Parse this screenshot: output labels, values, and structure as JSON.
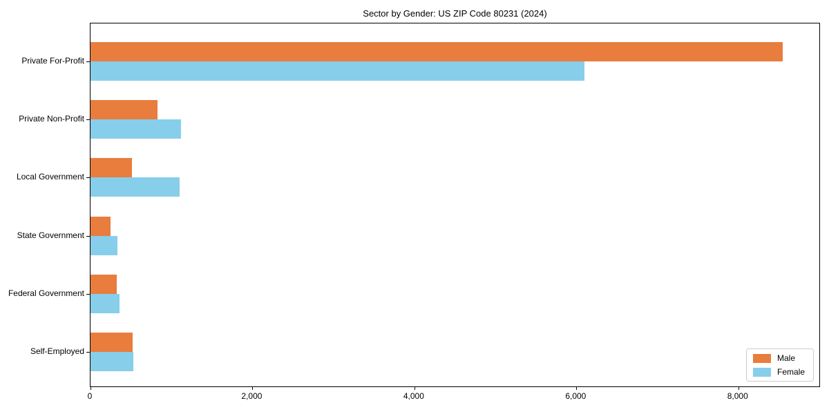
{
  "title": "Sector by Gender: US ZIP Code 80231 (2024)",
  "chart_data": {
    "type": "bar",
    "orientation": "horizontal",
    "title": "Sector by Gender: US ZIP Code 80231 (2024)",
    "xlabel": "",
    "ylabel": "",
    "categories": [
      "Private For-Profit",
      "Private Non-Profit",
      "Local Government",
      "State Government",
      "Federal Government",
      "Self-Employed"
    ],
    "series": [
      {
        "name": "Male",
        "color": "#e87d3e",
        "values": [
          8550,
          825,
          510,
          250,
          325,
          520
        ]
      },
      {
        "name": "Female",
        "color": "#87ceeb",
        "values": [
          6100,
          1115,
          1100,
          330,
          355,
          530
        ]
      }
    ],
    "xlim": [
      0,
      9000
    ],
    "x_ticks": [
      {
        "value": 0,
        "label": "0"
      },
      {
        "value": 2000,
        "label": "2,000"
      },
      {
        "value": 4000,
        "label": "4,000"
      },
      {
        "value": 6000,
        "label": "6,000"
      },
      {
        "value": 8000,
        "label": "8,000"
      }
    ],
    "grid": false,
    "legend_position": "lower right"
  },
  "legend": {
    "items": [
      {
        "label": "Male",
        "color": "#e87d3e"
      },
      {
        "label": "Female",
        "color": "#87ceeb"
      }
    ]
  }
}
